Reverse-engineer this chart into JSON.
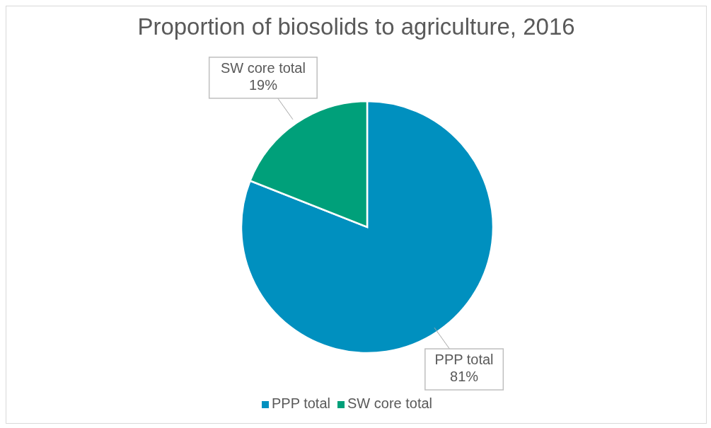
{
  "chart_data": {
    "type": "pie",
    "title": "Proportion of biosolids to agriculture, 2016",
    "categories": [
      "PPP total",
      "SW core total"
    ],
    "values": [
      81,
      19
    ],
    "colors": [
      "#0090bf",
      "#00a07a"
    ],
    "value_labels": [
      "81%",
      "19%"
    ],
    "legend": "bottom"
  }
}
